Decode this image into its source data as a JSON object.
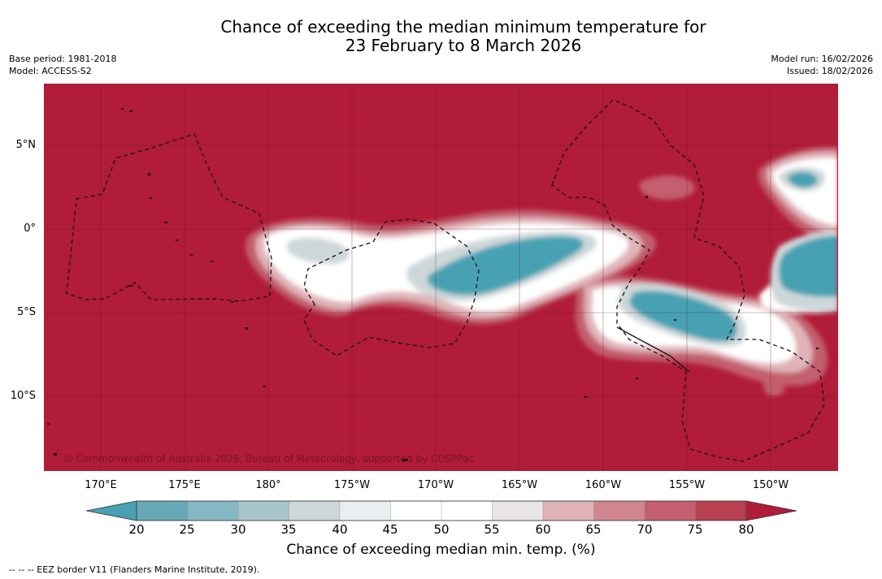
{
  "header": {
    "title": "Chance of exceeding the median minimum temperature for\n23 February to 8 March 2026",
    "base_period": "Base period: 1981-2018",
    "model": "Model: ACCESS-S2",
    "model_run": "Model run: 16/02/2026",
    "issued": "Issued: 18/02/2026"
  },
  "map": {
    "copyright": "© Commonwealth of Australia 2026, Bureau of Meteorology, supported by COSPPac",
    "lon_labels": [
      "170°E",
      "175°E",
      "180°",
      "175°W",
      "170°W",
      "165°W",
      "160°W",
      "155°W",
      "150°W"
    ],
    "lat_labels": [
      "5°N",
      "0°",
      "5°S",
      "10°S"
    ],
    "background_color": "#b11c38",
    "layers": {
      "land": "small islands (solid)",
      "eez": "EEZ borders (dashed)"
    }
  },
  "colorbar": {
    "title": "Chance of exceeding median min. temp. (%)",
    "ticks": [
      "20",
      "25",
      "30",
      "35",
      "40",
      "45",
      "50",
      "55",
      "60",
      "65",
      "70",
      "75",
      "80"
    ],
    "colors": [
      "#66a8b5",
      "#86b7c4",
      "#a7c5cb",
      "#cdd7d9",
      "#e9eef0",
      "#ffffff",
      "#ffffff",
      "#e8e6e6",
      "#dfb3b8",
      "#d0858f",
      "#c35f6e",
      "#b84050"
    ],
    "under_color": "#47a1b3",
    "over_color": "#b11c38"
  },
  "footer": {
    "legend_note": "--  --  -- EEZ border V11 (Flanders Marine Institute, 2019)."
  }
}
